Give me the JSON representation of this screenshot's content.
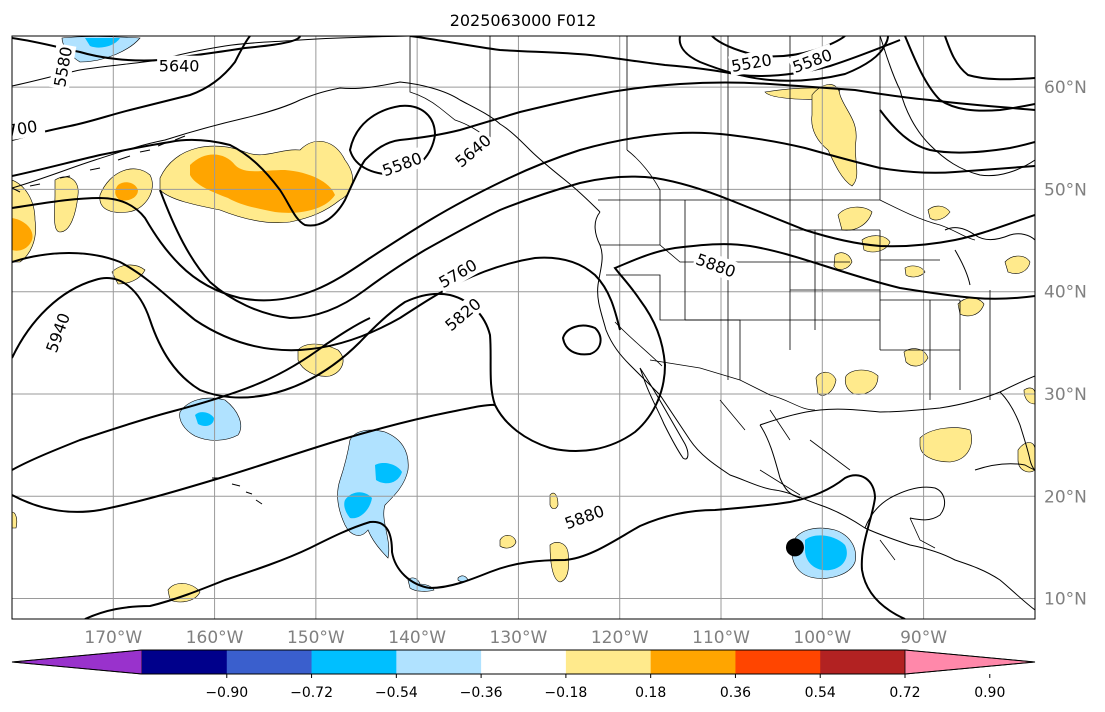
{
  "title": "2025063000 F012",
  "map_extent": {
    "lon_min": -180,
    "lon_max": -79,
    "lat_min": 8,
    "lat_max": 65
  },
  "lon_ticks": [
    {
      "lon": -170,
      "label": "170°W"
    },
    {
      "lon": -160,
      "label": "160°W"
    },
    {
      "lon": -150,
      "label": "150°W"
    },
    {
      "lon": -140,
      "label": "140°W"
    },
    {
      "lon": -130,
      "label": "130°W"
    },
    {
      "lon": -120,
      "label": "120°W"
    },
    {
      "lon": -110,
      "label": "110°W"
    },
    {
      "lon": -100,
      "label": "100°W"
    },
    {
      "lon": -90,
      "label": "90°W"
    }
  ],
  "lat_ticks": [
    {
      "lat": 60,
      "label": "60°N"
    },
    {
      "lat": 50,
      "label": "50°N"
    },
    {
      "lat": 40,
      "label": "40°N"
    },
    {
      "lat": 30,
      "label": "30°N"
    },
    {
      "lat": 20,
      "label": "20°N"
    },
    {
      "lat": 10,
      "label": "10°N"
    }
  ],
  "contour_labels": [
    {
      "text": "5580",
      "lon": -175,
      "lat": 62,
      "rot": -80
    },
    {
      "text": "5640",
      "lon": -163.5,
      "lat": 62.1,
      "rot": 0
    },
    {
      "text": "700",
      "lon": -179,
      "lat": 56,
      "rot": -10
    },
    {
      "text": "5580",
      "lon": -141.5,
      "lat": 52.5,
      "rot": -20
    },
    {
      "text": "5640",
      "lon": -134.5,
      "lat": 53.8,
      "rot": -40
    },
    {
      "text": "5760",
      "lon": -136,
      "lat": 41.8,
      "rot": -30
    },
    {
      "text": "5820",
      "lon": -135.5,
      "lat": 37.8,
      "rot": -40
    },
    {
      "text": "5940",
      "lon": -175.5,
      "lat": 36,
      "rot": -70
    },
    {
      "text": "5520",
      "lon": -107,
      "lat": 62.4,
      "rot": -10
    },
    {
      "text": "5580",
      "lon": -101,
      "lat": 62.6,
      "rot": -20
    },
    {
      "text": "5880",
      "lon": -110.5,
      "lat": 42.6,
      "rot": 20
    },
    {
      "text": "5880",
      "lon": -123.5,
      "lat": 18,
      "rot": -20
    }
  ],
  "marker": {
    "lon": -102.7,
    "lat": 15,
    "color": "#000000"
  },
  "colorbar": {
    "colors": [
      "#9932cc",
      "#00008b",
      "#3a5fcd",
      "#00bfff",
      "#b0e2ff",
      "#ffffff",
      "#ffea8c",
      "#ffa500",
      "#ff4500",
      "#b22222",
      "#ff88aa"
    ],
    "ticks": [
      "−0.90",
      "−0.72",
      "−0.54",
      "−0.36",
      "−0.18",
      "0.18",
      "0.36",
      "0.54",
      "0.72",
      "0.90"
    ]
  }
}
